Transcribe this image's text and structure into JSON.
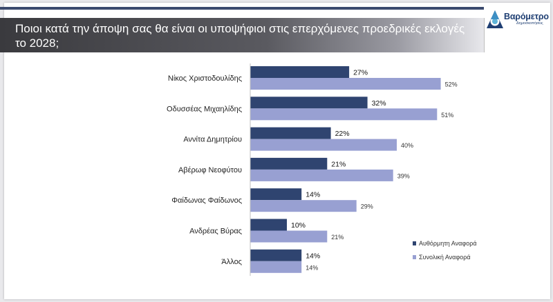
{
  "slide": {
    "title": "Ποιοι κατά την άποψη σας θα είναι οι υποψήφιοι στις επερχόμενες προεδρικές εκλογές το 2028;"
  },
  "logo": {
    "name": "Βαρόμετρο",
    "subtitle": "Δημοσκοπήσεις",
    "icon": "barometro-logo-icon"
  },
  "chart_data": {
    "type": "bar",
    "orientation": "horizontal",
    "categories": [
      "Νίκος Χριστοδουλίδης",
      "Οδυσσέας Μιχαηλίδης",
      "Αννίτα Δημητρίου",
      "Αβέρωφ Νεοφύτου",
      "Φαίδωνας Φαίδωνος",
      "Ανδρέας Βύρας",
      "Άλλος"
    ],
    "series": [
      {
        "name": "Αυθόρμητη Αναφορά",
        "values": [
          27,
          32,
          22,
          21,
          14,
          10,
          14
        ],
        "labels": [
          "27%",
          "32%",
          "22%",
          "21%",
          "14%",
          "10%",
          "14%"
        ],
        "color": "#2f4470"
      },
      {
        "name": "Συνολική Αναφορά",
        "values": [
          52,
          51,
          40,
          39,
          29,
          21,
          14
        ],
        "labels": [
          "52%",
          "51%",
          "40%",
          "39%",
          "29%",
          "21%",
          "14%"
        ],
        "color": "#98a0d2"
      }
    ],
    "xlim": [
      0,
      60
    ],
    "unit": "%",
    "grid": false,
    "legend": "bottom-right"
  }
}
